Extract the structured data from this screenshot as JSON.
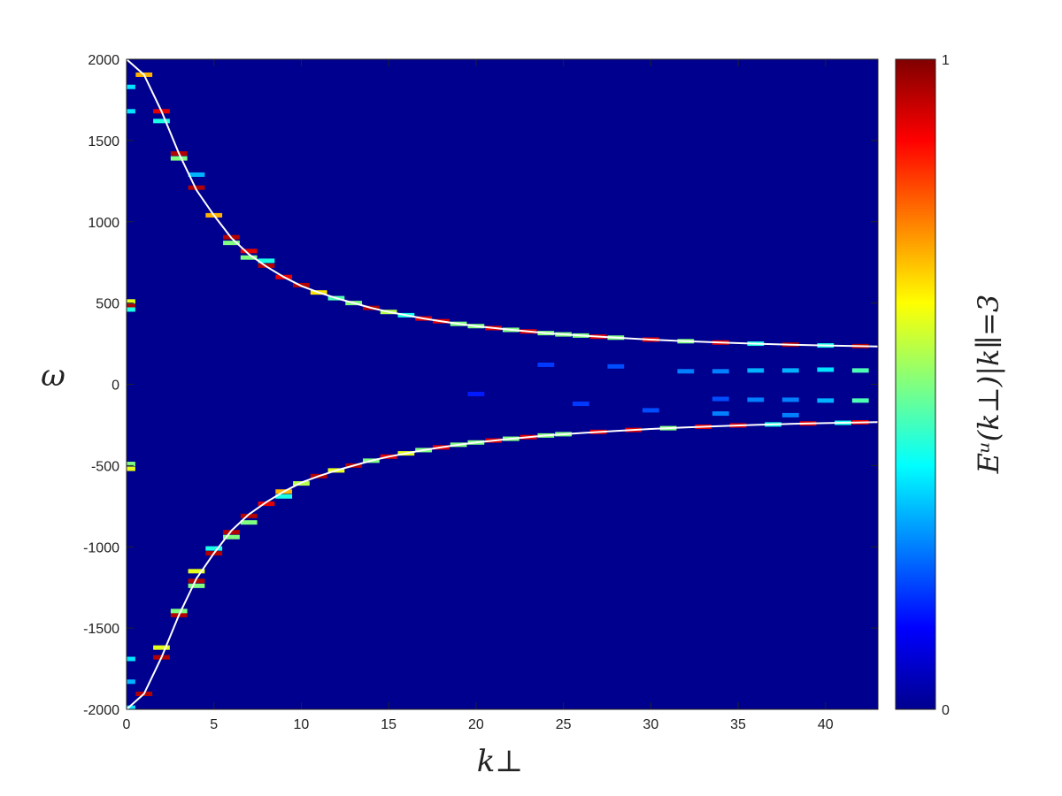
{
  "chart_data": {
    "type": "heatmap",
    "xlabel": "k⊥",
    "ylabel": "ω",
    "colorbar_label": "Eᵘ(k⊥)|k∥=3",
    "xlim": [
      0,
      43
    ],
    "ylim": [
      -2000,
      2000
    ],
    "x_ticks": [
      0,
      5,
      10,
      15,
      20,
      25,
      30,
      35,
      40
    ],
    "y_ticks": [
      2000,
      1500,
      1000,
      500,
      0,
      -500,
      -1000,
      -1500,
      -2000
    ],
    "colorbar_ticks": [
      1,
      0
    ],
    "colormap": "jet",
    "background_color": "#00008f",
    "curve_color": "#ffffff",
    "dispersion_curve_upper": [
      {
        "x": 0,
        "y": 2000
      },
      {
        "x": 1,
        "y": 1905
      },
      {
        "x": 2,
        "y": 1680
      },
      {
        "x": 3,
        "y": 1420
      },
      {
        "x": 4,
        "y": 1195
      },
      {
        "x": 5,
        "y": 1040
      },
      {
        "x": 6,
        "y": 900
      },
      {
        "x": 7,
        "y": 800
      },
      {
        "x": 8,
        "y": 725
      },
      {
        "x": 9,
        "y": 660
      },
      {
        "x": 10,
        "y": 605
      },
      {
        "x": 11,
        "y": 565
      },
      {
        "x": 12,
        "y": 530
      },
      {
        "x": 13,
        "y": 500
      },
      {
        "x": 14,
        "y": 470
      },
      {
        "x": 15,
        "y": 445
      },
      {
        "x": 16,
        "y": 425
      },
      {
        "x": 17,
        "y": 405
      },
      {
        "x": 18,
        "y": 388
      },
      {
        "x": 19,
        "y": 372
      },
      {
        "x": 20,
        "y": 358
      },
      {
        "x": 22,
        "y": 335
      },
      {
        "x": 24,
        "y": 315
      },
      {
        "x": 26,
        "y": 300
      },
      {
        "x": 28,
        "y": 287
      },
      {
        "x": 30,
        "y": 275
      },
      {
        "x": 32,
        "y": 265
      },
      {
        "x": 34,
        "y": 257
      },
      {
        "x": 36,
        "y": 250
      },
      {
        "x": 38,
        "y": 244
      },
      {
        "x": 40,
        "y": 239
      },
      {
        "x": 43,
        "y": 233
      }
    ],
    "bright_spots": [
      {
        "x": 1,
        "y": 1905,
        "v": 0.7
      },
      {
        "x": 2,
        "y": 1680,
        "v": 0.9
      },
      {
        "x": 2,
        "y": 1620,
        "v": 0.4
      },
      {
        "x": 3,
        "y": 1420,
        "v": 0.95
      },
      {
        "x": 3,
        "y": 1390,
        "v": 0.5
      },
      {
        "x": 4,
        "y": 1210,
        "v": 0.95
      },
      {
        "x": 4,
        "y": 1290,
        "v": 0.3
      },
      {
        "x": 5,
        "y": 1040,
        "v": 0.7
      },
      {
        "x": 6,
        "y": 905,
        "v": 0.95
      },
      {
        "x": 6,
        "y": 870,
        "v": 0.5
      },
      {
        "x": 7,
        "y": 820,
        "v": 0.9
      },
      {
        "x": 7,
        "y": 780,
        "v": 0.5
      },
      {
        "x": 8,
        "y": 730,
        "v": 0.95
      },
      {
        "x": 8,
        "y": 760,
        "v": 0.4
      },
      {
        "x": 9,
        "y": 660,
        "v": 0.9
      },
      {
        "x": 10,
        "y": 610,
        "v": 0.95
      },
      {
        "x": 11,
        "y": 565,
        "v": 0.65
      },
      {
        "x": 12,
        "y": 530,
        "v": 0.45
      },
      {
        "x": 13,
        "y": 500,
        "v": 0.5
      },
      {
        "x": 14,
        "y": 470,
        "v": 0.95
      },
      {
        "x": 15,
        "y": 445,
        "v": 0.55
      },
      {
        "x": 16,
        "y": 425,
        "v": 0.4
      },
      {
        "x": 17,
        "y": 405,
        "v": 0.9
      },
      {
        "x": 18,
        "y": 388,
        "v": 0.9
      },
      {
        "x": 19,
        "y": 372,
        "v": 0.5
      },
      {
        "x": 20,
        "y": 358,
        "v": 0.5
      },
      {
        "x": 21,
        "y": 346,
        "v": 0.9
      },
      {
        "x": 22,
        "y": 335,
        "v": 0.5
      },
      {
        "x": 23,
        "y": 325,
        "v": 0.9
      },
      {
        "x": 24,
        "y": 315,
        "v": 0.5
      },
      {
        "x": 25,
        "y": 307,
        "v": 0.5
      },
      {
        "x": 26,
        "y": 300,
        "v": 0.5
      },
      {
        "x": 27,
        "y": 293,
        "v": 0.9
      },
      {
        "x": 28,
        "y": 287,
        "v": 0.5
      },
      {
        "x": 30,
        "y": 275,
        "v": 0.9
      },
      {
        "x": 32,
        "y": 265,
        "v": 0.5
      },
      {
        "x": 34,
        "y": 257,
        "v": 0.9
      },
      {
        "x": 36,
        "y": 250,
        "v": 0.4
      },
      {
        "x": 38,
        "y": 244,
        "v": 0.95
      },
      {
        "x": 40,
        "y": 239,
        "v": 0.4
      },
      {
        "x": 42,
        "y": 235,
        "v": 0.95
      },
      {
        "x": 1,
        "y": -1905,
        "v": 0.95
      },
      {
        "x": 2,
        "y": -1680,
        "v": 0.95
      },
      {
        "x": 2,
        "y": -1620,
        "v": 0.6
      },
      {
        "x": 3,
        "y": -1420,
        "v": 0.95
      },
      {
        "x": 3,
        "y": -1395,
        "v": 0.5
      },
      {
        "x": 4,
        "y": -1210,
        "v": 0.95
      },
      {
        "x": 4,
        "y": -1150,
        "v": 0.6
      },
      {
        "x": 4,
        "y": -1240,
        "v": 0.5
      },
      {
        "x": 5,
        "y": -1040,
        "v": 0.95
      },
      {
        "x": 5,
        "y": -1010,
        "v": 0.4
      },
      {
        "x": 6,
        "y": -910,
        "v": 0.95
      },
      {
        "x": 6,
        "y": -940,
        "v": 0.5
      },
      {
        "x": 7,
        "y": -810,
        "v": 0.95
      },
      {
        "x": 7,
        "y": -850,
        "v": 0.5
      },
      {
        "x": 8,
        "y": -735,
        "v": 0.9
      },
      {
        "x": 9,
        "y": -660,
        "v": 0.7
      },
      {
        "x": 9,
        "y": -690,
        "v": 0.4
      },
      {
        "x": 10,
        "y": -610,
        "v": 0.55
      },
      {
        "x": 11,
        "y": -565,
        "v": 0.95
      },
      {
        "x": 12,
        "y": -530,
        "v": 0.6
      },
      {
        "x": 13,
        "y": -500,
        "v": 0.95
      },
      {
        "x": 14,
        "y": -470,
        "v": 0.5
      },
      {
        "x": 15,
        "y": -445,
        "v": 0.9
      },
      {
        "x": 16,
        "y": -425,
        "v": 0.6
      },
      {
        "x": 17,
        "y": -405,
        "v": 0.5
      },
      {
        "x": 18,
        "y": -388,
        "v": 0.9
      },
      {
        "x": 19,
        "y": -372,
        "v": 0.5
      },
      {
        "x": 20,
        "y": -358,
        "v": 0.5
      },
      {
        "x": 21,
        "y": -346,
        "v": 0.9
      },
      {
        "x": 22,
        "y": -335,
        "v": 0.5
      },
      {
        "x": 23,
        "y": -325,
        "v": 0.9
      },
      {
        "x": 24,
        "y": -315,
        "v": 0.5
      },
      {
        "x": 25,
        "y": -307,
        "v": 0.5
      },
      {
        "x": 27,
        "y": -293,
        "v": 0.9
      },
      {
        "x": 29,
        "y": -281,
        "v": 0.9
      },
      {
        "x": 31,
        "y": -270,
        "v": 0.5
      },
      {
        "x": 33,
        "y": -261,
        "v": 0.9
      },
      {
        "x": 35,
        "y": -253,
        "v": 0.9
      },
      {
        "x": 37,
        "y": -247,
        "v": 0.4
      },
      {
        "x": 39,
        "y": -241,
        "v": 0.9
      },
      {
        "x": 41,
        "y": -237,
        "v": 0.4
      },
      {
        "x": 42,
        "y": -234,
        "v": 0.9
      },
      {
        "x": 0,
        "y": 480,
        "v": 0.95
      },
      {
        "x": 0,
        "y": 510,
        "v": 0.6
      },
      {
        "x": 0,
        "y": 460,
        "v": 0.4
      },
      {
        "x": 0,
        "y": -490,
        "v": 0.5
      },
      {
        "x": 0,
        "y": -520,
        "v": 0.6
      },
      {
        "x": 0,
        "y": 1830,
        "v": 0.35
      },
      {
        "x": 0,
        "y": 1680,
        "v": 0.35
      },
      {
        "x": 0,
        "y": -1690,
        "v": 0.35
      },
      {
        "x": 0,
        "y": -1830,
        "v": 0.3
      },
      {
        "x": 0,
        "y": -1990,
        "v": 0.35
      },
      {
        "x": 32,
        "y": 80,
        "v": 0.25
      },
      {
        "x": 34,
        "y": 80,
        "v": 0.25
      },
      {
        "x": 36,
        "y": 85,
        "v": 0.3
      },
      {
        "x": 38,
        "y": 85,
        "v": 0.3
      },
      {
        "x": 40,
        "y": 90,
        "v": 0.35
      },
      {
        "x": 42,
        "y": 85,
        "v": 0.45
      },
      {
        "x": 34,
        "y": -90,
        "v": 0.2
      },
      {
        "x": 36,
        "y": -95,
        "v": 0.25
      },
      {
        "x": 38,
        "y": -95,
        "v": 0.25
      },
      {
        "x": 40,
        "y": -100,
        "v": 0.3
      },
      {
        "x": 42,
        "y": -100,
        "v": 0.45
      },
      {
        "x": 30,
        "y": -160,
        "v": 0.2
      },
      {
        "x": 34,
        "y": -180,
        "v": 0.25
      },
      {
        "x": 38,
        "y": -190,
        "v": 0.25
      },
      {
        "x": 24,
        "y": 120,
        "v": 0.18
      },
      {
        "x": 28,
        "y": 110,
        "v": 0.2
      },
      {
        "x": 26,
        "y": -120,
        "v": 0.18
      },
      {
        "x": 20,
        "y": -60,
        "v": 0.15
      }
    ]
  }
}
